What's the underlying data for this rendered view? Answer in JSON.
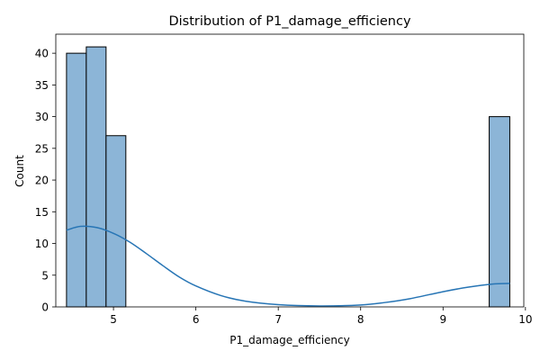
{
  "chart_data": {
    "type": "bar",
    "title": "Distribution of P1_damage_efficiency",
    "xlabel": "P1_damage_efficiency",
    "ylabel": "Count",
    "xlim": [
      4.3,
      9.98
    ],
    "ylim": [
      0,
      43
    ],
    "xticks": [
      5,
      6,
      7,
      8,
      9,
      10
    ],
    "yticks": [
      0,
      5,
      10,
      15,
      20,
      25,
      30,
      35,
      40
    ],
    "grid": false,
    "bins": [
      {
        "x0": 4.43,
        "x1": 4.67,
        "count": 40
      },
      {
        "x0": 4.67,
        "x1": 4.91,
        "count": 41
      },
      {
        "x0": 4.91,
        "x1": 5.15,
        "count": 27
      },
      {
        "x0": 9.56,
        "x1": 9.81,
        "count": 30
      }
    ],
    "kde": {
      "x": [
        4.43,
        4.6,
        4.8,
        5.0,
        5.2,
        5.4,
        5.6,
        5.8,
        6.0,
        6.3,
        6.6,
        7.0,
        7.5,
        8.0,
        8.3,
        8.6,
        9.0,
        9.3,
        9.6,
        9.81
      ],
      "y": [
        12.1,
        12.7,
        12.5,
        11.6,
        10.2,
        8.4,
        6.5,
        4.7,
        3.3,
        1.8,
        0.9,
        0.35,
        0.15,
        0.3,
        0.7,
        1.3,
        2.4,
        3.1,
        3.6,
        3.7
      ]
    },
    "colors": {
      "bar_fill": "#8cb5d7",
      "bar_edge": "#000000",
      "kde_line": "#2775b5"
    }
  }
}
